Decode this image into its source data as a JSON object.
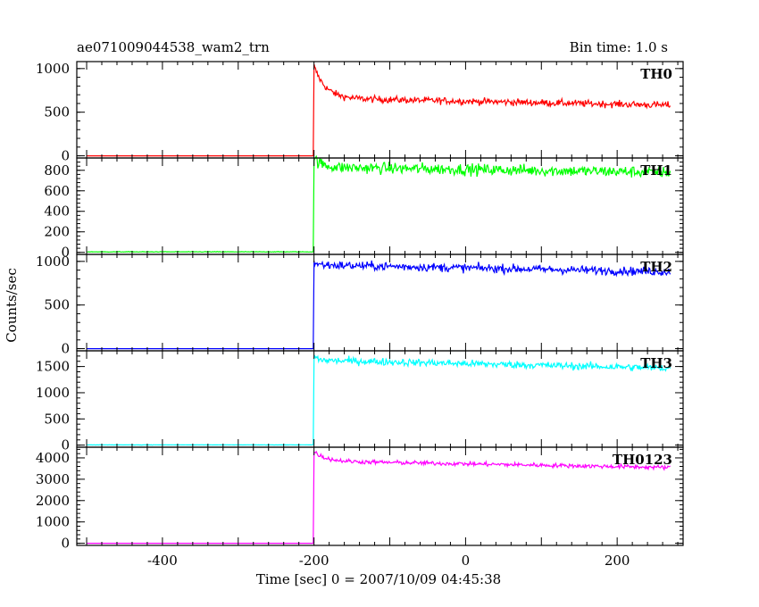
{
  "chart_data": {
    "type": "line",
    "title": "ae071009044538_wam2_trn",
    "subtitle": "Bin time: 1.0 s",
    "xlabel": "Time [sec] 0 = 2007/10/09 04:45:38",
    "ylabel": "Counts/sec",
    "xlim": [
      -513,
      287
    ],
    "xticks": [
      -400,
      -200,
      0,
      200
    ],
    "grid": false,
    "panels": [
      {
        "name": "TH0",
        "color": "#ff0000",
        "ylim": [
          -25,
          1080
        ],
        "yticks": [
          0,
          500,
          1000
        ],
        "trigger": -200,
        "pre": 0,
        "peak": 1030,
        "plateau": 660,
        "end": 580,
        "decay_tau": 15,
        "noise": 28
      },
      {
        "name": "TH1",
        "color": "#00ff00",
        "ylim": [
          -20,
          920
        ],
        "yticks": [
          0,
          200,
          400,
          600,
          800
        ],
        "trigger": -200,
        "pre": 5,
        "peak": 920,
        "plateau": 830,
        "end": 780,
        "decay_tau": 10,
        "noise": 40
      },
      {
        "name": "TH2",
        "color": "#0000ff",
        "ylim": [
          -25,
          1080
        ],
        "yticks": [
          0,
          500,
          1000
        ],
        "trigger": -200,
        "pre": 0,
        "peak": 990,
        "plateau": 960,
        "end": 880,
        "decay_tau": 5,
        "noise": 35
      },
      {
        "name": "TH3",
        "color": "#00ffff",
        "ylim": [
          -40,
          1800
        ],
        "yticks": [
          0,
          500,
          1000,
          1500
        ],
        "trigger": -200,
        "pre": 5,
        "peak": 1700,
        "plateau": 1620,
        "end": 1470,
        "decay_tau": 5,
        "noise": 50
      },
      {
        "name": "TH0123",
        "color": "#ff00ff",
        "ylim": [
          -100,
          4500
        ],
        "yticks": [
          0,
          1000,
          2000,
          3000,
          4000
        ],
        "trigger": -200,
        "pre": 0,
        "peak": 4300,
        "plateau": 3850,
        "end": 3550,
        "decay_tau": 15,
        "noise": 70
      }
    ]
  }
}
